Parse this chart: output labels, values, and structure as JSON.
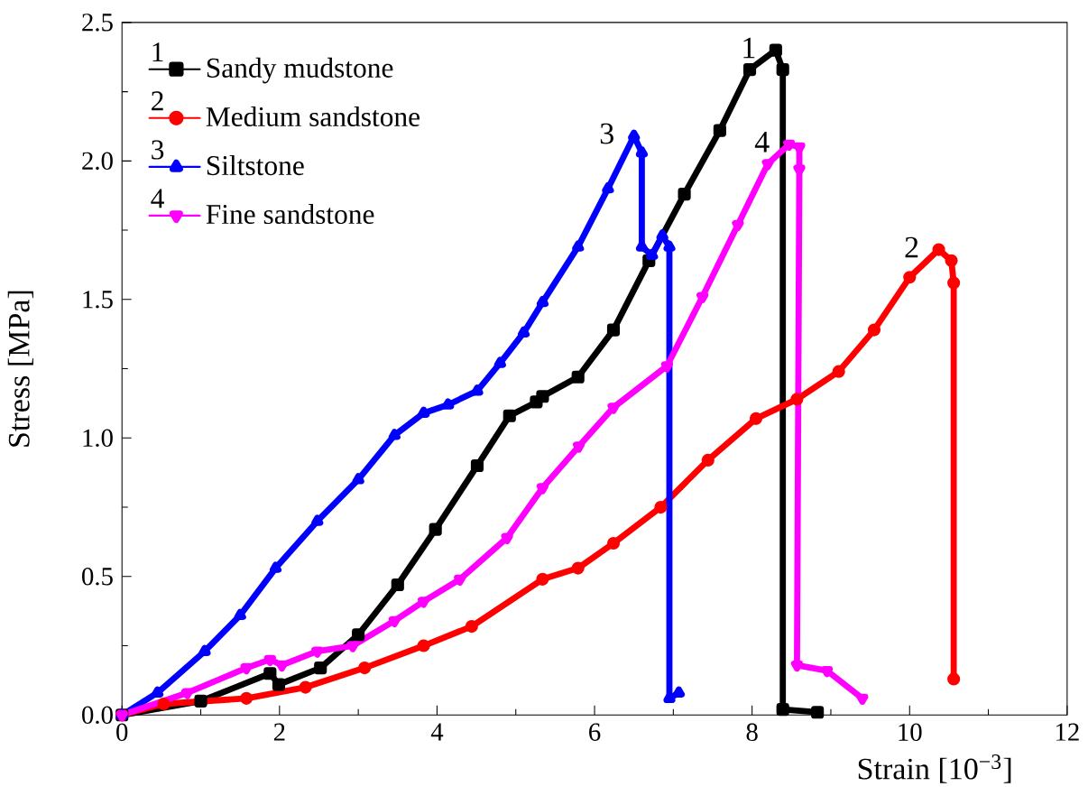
{
  "chart_data": {
    "type": "line",
    "xlabel": "Strain [10$^{−3}$]",
    "ylabel": "Stress [MPa]",
    "xlim": [
      0,
      12
    ],
    "xticks": [
      0,
      2,
      4,
      6,
      8,
      10,
      12
    ],
    "ylim": [
      0,
      2.5
    ],
    "yticks": [
      {
        "value": 0,
        "label": "0.0"
      },
      0.5,
      {
        "value": 1,
        "label": "1.0"
      },
      1.5,
      {
        "value": 2,
        "label": "2.0"
      },
      2.5
    ],
    "grid": false,
    "legend": "top left",
    "line_style": "solid",
    "annotations": [
      "1",
      "2",
      "3",
      "4"
    ],
    "series": [
      {
        "name": "Sandy mudstone",
        "color": "#000000",
        "marker": "square",
        "x": [
          0,
          1.0,
          1.88,
          1.99,
          2.52,
          3.0,
          3.5,
          3.98,
          4.51,
          4.92,
          5.26,
          5.34,
          5.79,
          6.24,
          6.69,
          7.14,
          7.59,
          7.97,
          8.3,
          8.39,
          8.39,
          8.83
        ],
        "values": [
          0,
          0.05,
          0.15,
          0.11,
          0.17,
          0.29,
          0.47,
          0.67,
          0.9,
          1.08,
          1.13,
          1.15,
          1.22,
          1.39,
          1.64,
          1.88,
          2.11,
          2.33,
          2.4,
          2.33,
          0.02,
          0.01
        ]
      },
      {
        "name": "Medium sandstone",
        "color": "#ff0000",
        "marker": "circle",
        "x": [
          0,
          0.53,
          1.58,
          2.33,
          3.08,
          3.83,
          4.44,
          5.34,
          5.79,
          6.24,
          6.84,
          7.44,
          8.05,
          8.57,
          9.1,
          9.55,
          10.0,
          10.37,
          10.53,
          10.56,
          10.56
        ],
        "values": [
          0,
          0.04,
          0.06,
          0.1,
          0.17,
          0.25,
          0.32,
          0.49,
          0.53,
          0.62,
          0.75,
          0.92,
          1.07,
          1.14,
          1.24,
          1.39,
          1.58,
          1.68,
          1.64,
          1.56,
          0.13
        ]
      },
      {
        "name": "Siltstone",
        "color": "#0000ff",
        "marker": "triangle",
        "x": [
          0,
          0.45,
          1.05,
          1.5,
          1.95,
          2.48,
          3.0,
          3.46,
          3.83,
          4.14,
          4.51,
          4.8,
          5.1,
          5.34,
          5.79,
          6.17,
          6.5,
          6.6,
          6.6,
          6.73,
          6.86,
          6.95,
          6.95,
          7.07
        ],
        "values": [
          0,
          0.08,
          0.23,
          0.36,
          0.53,
          0.7,
          0.85,
          1.01,
          1.09,
          1.12,
          1.17,
          1.27,
          1.38,
          1.49,
          1.69,
          1.9,
          2.09,
          2.03,
          1.69,
          1.66,
          1.73,
          1.69,
          0.06,
          0.08
        ]
      },
      {
        "name": "Fine sandstone",
        "color": "#ff00ff",
        "marker": "triangle down",
        "x": [
          0,
          0.83,
          1.58,
          1.88,
          2.03,
          2.48,
          2.93,
          3.46,
          3.83,
          4.29,
          4.89,
          5.34,
          5.8,
          6.24,
          6.92,
          7.37,
          7.82,
          8.2,
          8.47,
          8.6,
          8.6,
          8.57,
          8.95,
          9.4
        ],
        "values": [
          0,
          0.08,
          0.17,
          0.2,
          0.18,
          0.23,
          0.25,
          0.34,
          0.41,
          0.49,
          0.64,
          0.82,
          0.97,
          1.11,
          1.26,
          1.51,
          1.77,
          1.99,
          2.06,
          2.05,
          1.97,
          0.18,
          0.16,
          0.06
        ]
      }
    ]
  }
}
